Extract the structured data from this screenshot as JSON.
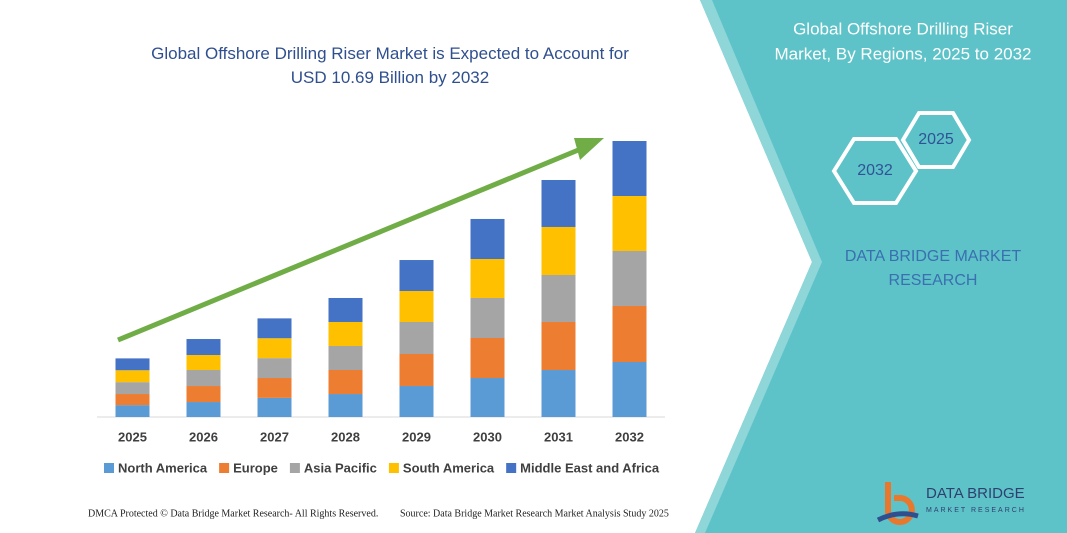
{
  "chart_data": {
    "type": "bar",
    "stacked": true,
    "title": "Global Offshore Drilling Riser Market is Expected to Account for USD 10.69 Billion by 2032",
    "categories": [
      "2025",
      "2026",
      "2027",
      "2028",
      "2029",
      "2030",
      "2031",
      "2032"
    ],
    "series": [
      {
        "name": "North America",
        "color": "#5b9bd5",
        "values": [
          0.46,
          0.58,
          0.74,
          0.89,
          1.2,
          1.51,
          1.82,
          2.13
        ]
      },
      {
        "name": "Europe",
        "color": "#ed7d31",
        "values": [
          0.43,
          0.62,
          0.77,
          0.93,
          1.24,
          1.55,
          1.86,
          2.17
        ]
      },
      {
        "name": "Asia Pacific",
        "color": "#a5a5a5",
        "values": [
          0.46,
          0.62,
          0.77,
          0.93,
          1.24,
          1.55,
          1.82,
          2.13
        ]
      },
      {
        "name": "South America",
        "color": "#ffc000",
        "values": [
          0.46,
          0.58,
          0.77,
          0.93,
          1.2,
          1.51,
          1.86,
          2.13
        ]
      },
      {
        "name": "Middle East and Africa",
        "color": "#4472c4",
        "values": [
          0.46,
          0.62,
          0.77,
          0.93,
          1.2,
          1.55,
          1.82,
          2.13
        ]
      }
    ]
  },
  "side_panel": {
    "title_lines": [
      "Global Offshore Drilling Riser",
      "Market, By Regions, 2025 to 2032"
    ],
    "hex_labels": [
      "2025",
      "2032"
    ],
    "brand_lines": [
      "DATA BRIDGE MARKET",
      "RESEARCH"
    ]
  },
  "logo": {
    "name": "DATA BRIDGE",
    "tagline": "MARKET RESEARCH"
  },
  "footer": {
    "left": "DMCA Protected © Data Bridge Market Research- All Rights Reserved.",
    "right": "Source: Data Bridge Market Research Market Analysis Study 2025"
  }
}
